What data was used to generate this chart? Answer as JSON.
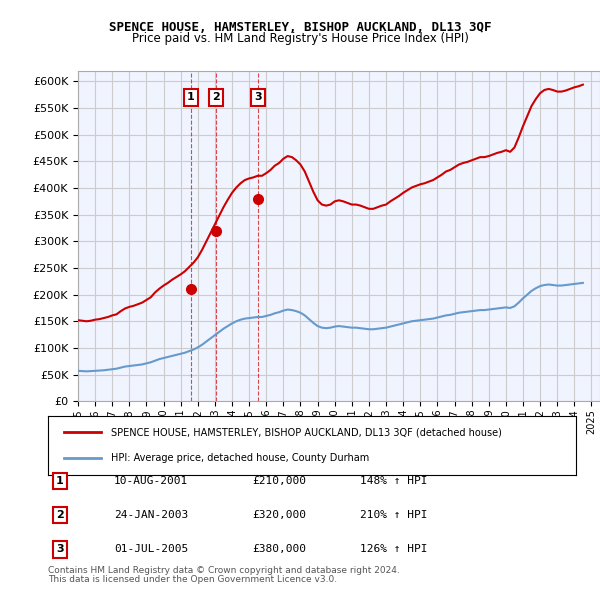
{
  "title": "SPENCE HOUSE, HAMSTERLEY, BISHOP AUCKLAND, DL13 3QF",
  "subtitle": "Price paid vs. HM Land Registry's House Price Index (HPI)",
  "legend_line1": "SPENCE HOUSE, HAMSTERLEY, BISHOP AUCKLAND, DL13 3QF (detached house)",
  "legend_line2": "HPI: Average price, detached house, County Durham",
  "footer1": "Contains HM Land Registry data © Crown copyright and database right 2024.",
  "footer2": "This data is licensed under the Open Government Licence v3.0.",
  "sale_points": [
    {
      "num": 1,
      "date": "10-AUG-2001",
      "price": 210000,
      "hpi_pct": "148%",
      "x_year": 2001.6
    },
    {
      "num": 2,
      "date": "24-JAN-2003",
      "price": 320000,
      "hpi_pct": "210%",
      "x_year": 2003.07
    },
    {
      "num": 3,
      "date": "01-JUL-2005",
      "price": 380000,
      "hpi_pct": "126%",
      "x_year": 2005.5
    }
  ],
  "red_color": "#cc0000",
  "blue_color": "#6699cc",
  "grid_color": "#cccccc",
  "background_color": "#ffffff",
  "plot_bg_color": "#f0f4ff",
  "ylim": [
    0,
    620000
  ],
  "xlim_start": 1995.0,
  "xlim_end": 2025.5,
  "hpi_blue_data": {
    "years": [
      1995.0,
      1995.25,
      1995.5,
      1995.75,
      1996.0,
      1996.25,
      1996.5,
      1996.75,
      1997.0,
      1997.25,
      1997.5,
      1997.75,
      1998.0,
      1998.25,
      1998.5,
      1998.75,
      1999.0,
      1999.25,
      1999.5,
      1999.75,
      2000.0,
      2000.25,
      2000.5,
      2000.75,
      2001.0,
      2001.25,
      2001.5,
      2001.75,
      2002.0,
      2002.25,
      2002.5,
      2002.75,
      2003.0,
      2003.25,
      2003.5,
      2003.75,
      2004.0,
      2004.25,
      2004.5,
      2004.75,
      2005.0,
      2005.25,
      2005.5,
      2005.75,
      2006.0,
      2006.25,
      2006.5,
      2006.75,
      2007.0,
      2007.25,
      2007.5,
      2007.75,
      2008.0,
      2008.25,
      2008.5,
      2008.75,
      2009.0,
      2009.25,
      2009.5,
      2009.75,
      2010.0,
      2010.25,
      2010.5,
      2010.75,
      2011.0,
      2011.25,
      2011.5,
      2011.75,
      2012.0,
      2012.25,
      2012.5,
      2012.75,
      2013.0,
      2013.25,
      2013.5,
      2013.75,
      2014.0,
      2014.25,
      2014.5,
      2014.75,
      2015.0,
      2015.25,
      2015.5,
      2015.75,
      2016.0,
      2016.25,
      2016.5,
      2016.75,
      2017.0,
      2017.25,
      2017.5,
      2017.75,
      2018.0,
      2018.25,
      2018.5,
      2018.75,
      2019.0,
      2019.25,
      2019.5,
      2019.75,
      2020.0,
      2020.25,
      2020.5,
      2020.75,
      2021.0,
      2021.25,
      2021.5,
      2021.75,
      2022.0,
      2022.25,
      2022.5,
      2022.75,
      2023.0,
      2023.25,
      2023.5,
      2023.75,
      2024.0,
      2024.25,
      2024.5
    ],
    "values": [
      57000,
      56500,
      56000,
      56500,
      57000,
      57500,
      58000,
      59000,
      60000,
      61000,
      63000,
      65000,
      66000,
      67000,
      68000,
      69000,
      71000,
      73000,
      76000,
      79000,
      81000,
      83000,
      85000,
      87000,
      89000,
      91000,
      94000,
      97000,
      101000,
      106000,
      112000,
      118000,
      124000,
      130000,
      136000,
      141000,
      146000,
      150000,
      153000,
      155000,
      156000,
      157000,
      158000,
      158000,
      160000,
      162000,
      165000,
      167000,
      170000,
      172000,
      171000,
      169000,
      166000,
      161000,
      154000,
      147000,
      141000,
      138000,
      137000,
      138000,
      140000,
      141000,
      140000,
      139000,
      138000,
      138000,
      137000,
      136000,
      135000,
      135000,
      136000,
      137000,
      138000,
      140000,
      142000,
      144000,
      146000,
      148000,
      150000,
      151000,
      152000,
      153000,
      154000,
      155000,
      157000,
      159000,
      161000,
      162000,
      164000,
      166000,
      167000,
      168000,
      169000,
      170000,
      171000,
      171000,
      172000,
      173000,
      174000,
      175000,
      176000,
      175000,
      178000,
      185000,
      193000,
      200000,
      207000,
      212000,
      216000,
      218000,
      219000,
      218000,
      217000,
      217000,
      218000,
      219000,
      220000,
      221000,
      222000
    ]
  },
  "hpi_red_data": {
    "years": [
      1995.0,
      1995.25,
      1995.5,
      1995.75,
      1996.0,
      1996.25,
      1996.5,
      1996.75,
      1997.0,
      1997.25,
      1997.5,
      1997.75,
      1998.0,
      1998.25,
      1998.5,
      1998.75,
      1999.0,
      1999.25,
      1999.5,
      1999.75,
      2000.0,
      2000.25,
      2000.5,
      2000.75,
      2001.0,
      2001.25,
      2001.5,
      2001.75,
      2002.0,
      2002.25,
      2002.5,
      2002.75,
      2003.0,
      2003.25,
      2003.5,
      2003.75,
      2004.0,
      2004.25,
      2004.5,
      2004.75,
      2005.0,
      2005.25,
      2005.5,
      2005.75,
      2006.0,
      2006.25,
      2006.5,
      2006.75,
      2007.0,
      2007.25,
      2007.5,
      2007.75,
      2008.0,
      2008.25,
      2008.5,
      2008.75,
      2009.0,
      2009.25,
      2009.5,
      2009.75,
      2010.0,
      2010.25,
      2010.5,
      2010.75,
      2011.0,
      2011.25,
      2011.5,
      2011.75,
      2012.0,
      2012.25,
      2012.5,
      2012.75,
      2013.0,
      2013.25,
      2013.5,
      2013.75,
      2014.0,
      2014.25,
      2014.5,
      2014.75,
      2015.0,
      2015.25,
      2015.5,
      2015.75,
      2016.0,
      2016.25,
      2016.5,
      2016.75,
      2017.0,
      2017.25,
      2017.5,
      2017.75,
      2018.0,
      2018.25,
      2018.5,
      2018.75,
      2019.0,
      2019.25,
      2019.5,
      2019.75,
      2020.0,
      2020.25,
      2020.5,
      2020.75,
      2021.0,
      2021.25,
      2021.5,
      2021.75,
      2022.0,
      2022.25,
      2022.5,
      2022.75,
      2023.0,
      2023.25,
      2023.5,
      2023.75,
      2024.0,
      2024.25,
      2024.5
    ],
    "values": [
      152000,
      151000,
      150000,
      151000,
      153000,
      154000,
      156000,
      158000,
      161000,
      163000,
      169000,
      174000,
      177000,
      179000,
      182000,
      185000,
      190000,
      195000,
      204000,
      211000,
      217000,
      222000,
      228000,
      233000,
      238000,
      244000,
      252000,
      260000,
      270000,
      284000,
      300000,
      316000,
      332000,
      348000,
      364000,
      378000,
      391000,
      401000,
      409000,
      415000,
      418000,
      420000,
      423000,
      423000,
      428000,
      434000,
      442000,
      447000,
      455000,
      460000,
      458000,
      452000,
      444000,
      431000,
      412000,
      393000,
      377000,
      369000,
      367000,
      369000,
      375000,
      377000,
      375000,
      372000,
      369000,
      369000,
      367000,
      364000,
      361000,
      361000,
      364000,
      367000,
      369000,
      375000,
      380000,
      385000,
      391000,
      396000,
      401000,
      404000,
      407000,
      409000,
      412000,
      415000,
      420000,
      425000,
      431000,
      434000,
      439000,
      444000,
      447000,
      449000,
      452000,
      455000,
      458000,
      458000,
      460000,
      463000,
      466000,
      468000,
      471000,
      468000,
      476000,
      495000,
      516000,
      535000,
      554000,
      567000,
      578000,
      584000,
      586000,
      584000,
      581000,
      581000,
      583000,
      586000,
      589000,
      591000,
      594000
    ]
  }
}
